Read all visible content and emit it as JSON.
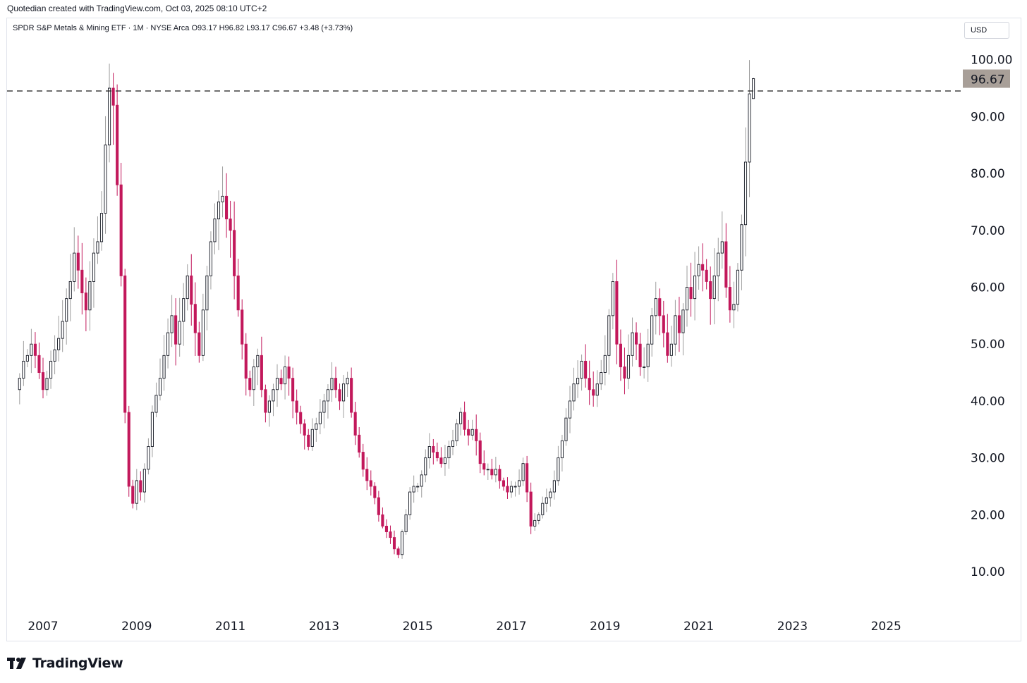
{
  "header": {
    "credit": "Quotedian created with TradingView.com, Oct 03, 2025 08:10 UTC+2",
    "symbol_line": "SPDR S&P Metals & Mining ETF · 1M · NYSE Arca  O93.17  H96.82  L93.17  C96.67  +3.48 (+3.73%)",
    "currency": "USD"
  },
  "footer": {
    "brand": "TradingView"
  },
  "colors": {
    "up": "#131722",
    "down": "#c2185b",
    "wick_up": "#9e9e9e",
    "price_label_bg": "#a89f98",
    "dashed_line": "#2b2b2b"
  },
  "chart_data": {
    "type": "candlestick",
    "title": "SPDR S&P Metals & Mining ETF",
    "interval": "1M",
    "exchange": "NYSE Arca",
    "last": {
      "open": 93.17,
      "high": 96.82,
      "low": 93.17,
      "close": 96.67,
      "change": 3.48,
      "change_pct": 3.73
    },
    "price_label": "96.67",
    "reference_line": 94.5,
    "y_ticks": [
      "10.00",
      "20.00",
      "30.00",
      "40.00",
      "50.00",
      "60.00",
      "70.00",
      "80.00",
      "90.00",
      "100.00"
    ],
    "y_tick_values": [
      10,
      20,
      30,
      40,
      50,
      60,
      70,
      80,
      90,
      100
    ],
    "x_ticks": [
      "2007",
      "2009",
      "2011",
      "2013",
      "2015",
      "2017",
      "2019",
      "2021",
      "2023",
      "2025"
    ],
    "x_tick_values": [
      2007,
      2009,
      2011,
      2013,
      2015,
      2017,
      2019,
      2021,
      2023,
      2025
    ],
    "start": "2006-07",
    "closes": [
      44,
      47,
      48,
      50,
      48,
      45,
      42,
      44,
      47,
      49,
      51,
      54,
      58,
      61,
      66,
      63,
      59,
      56,
      61,
      66,
      68,
      73,
      85,
      95,
      92,
      78,
      62,
      38,
      25,
      22,
      26,
      24,
      28,
      32,
      38,
      41,
      44,
      48,
      52,
      55,
      50,
      54,
      58,
      62,
      57,
      52,
      48,
      56,
      62,
      68,
      72,
      75,
      76,
      72,
      70,
      62,
      56,
      50,
      44,
      42,
      46,
      48,
      42,
      38,
      40,
      42,
      44,
      43,
      46,
      44,
      40,
      38,
      36,
      34,
      32,
      35,
      36,
      38,
      40,
      42,
      44,
      42,
      40,
      43,
      44,
      38,
      34,
      31,
      28,
      26,
      25,
      23,
      20,
      18,
      17,
      16,
      14,
      13,
      17,
      20,
      24,
      25,
      25,
      27,
      30,
      32,
      31,
      30,
      29,
      30,
      32,
      33,
      36,
      38,
      35,
      34,
      35,
      33,
      29,
      28,
      28,
      27,
      28,
      26,
      25,
      24,
      25,
      25,
      26,
      29,
      24,
      18,
      19,
      20,
      22,
      23,
      24,
      26,
      30,
      33,
      37,
      40,
      43,
      44,
      47,
      44,
      42,
      41,
      43,
      45,
      48,
      55,
      61,
      50,
      46,
      44,
      48,
      52,
      50,
      46,
      46,
      50,
      55,
      58,
      55,
      52,
      48,
      50,
      55,
      52,
      56,
      60,
      58,
      62,
      64,
      63,
      61,
      58,
      62,
      66,
      68,
      60,
      56,
      57,
      63,
      71,
      82,
      94,
      96.67
    ]
  }
}
